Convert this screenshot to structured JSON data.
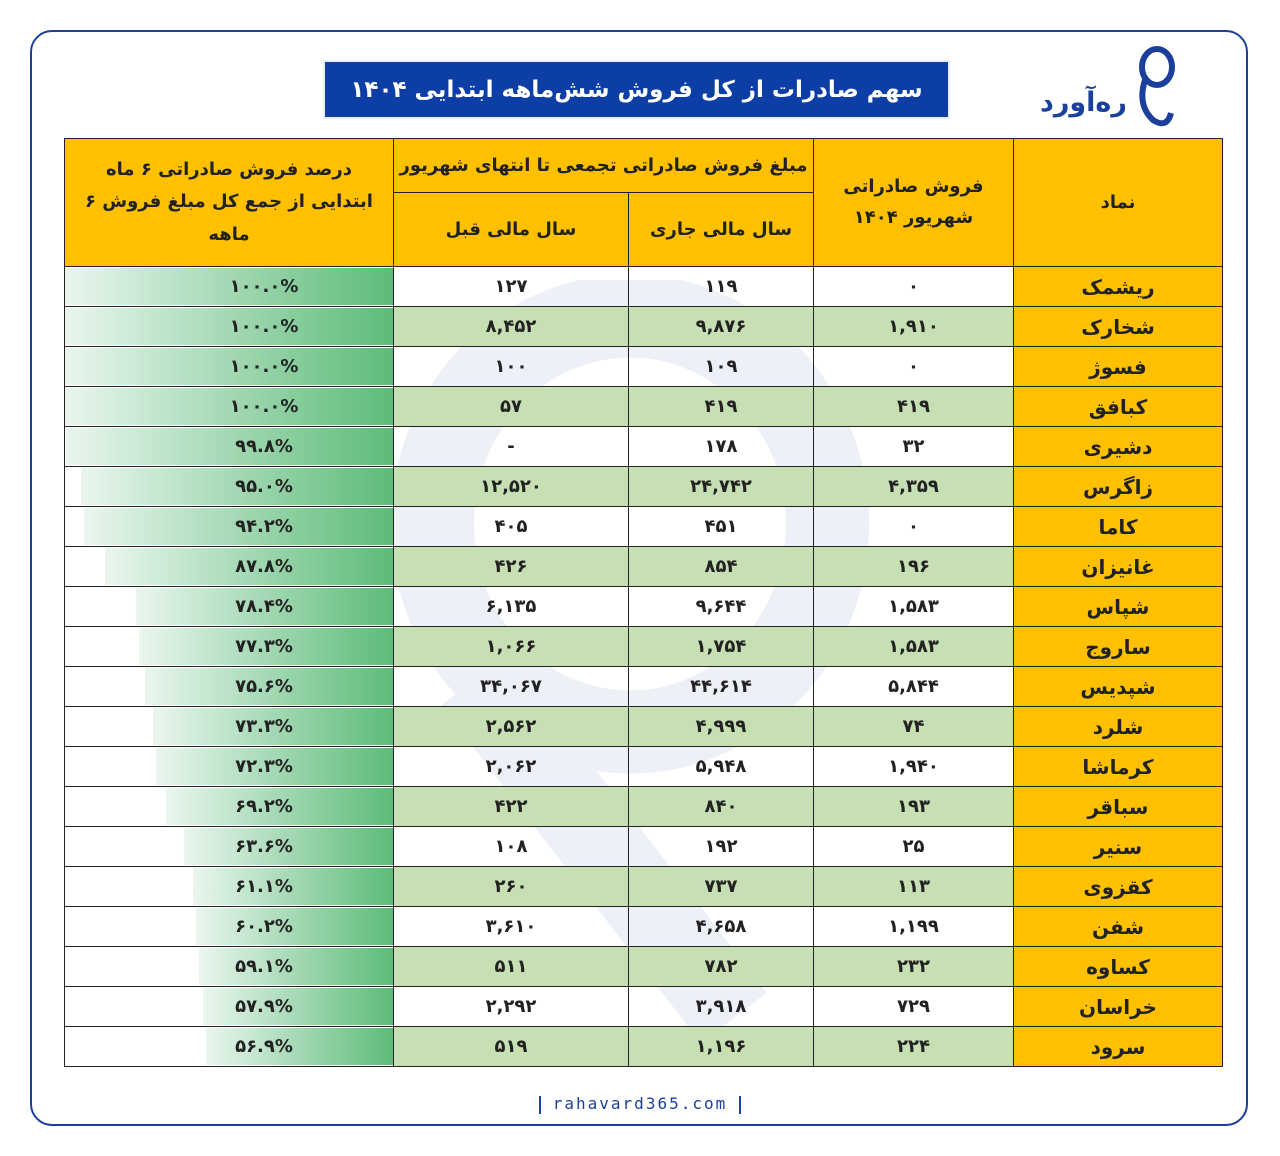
{
  "title": "سهم صادرات از کل فروش شش‌ماهه ابتدایی ۱۴۰۴",
  "brand": {
    "name": "ره‌آورد",
    "website": "rahavard365.com",
    "color": "#1b3f9a"
  },
  "colors": {
    "header": "#ffc000",
    "symbol_column": "#ffc000",
    "alt_row": "#c6e0b4",
    "bar": "#5dbb7a",
    "title_bg": "#0d3ea6"
  },
  "chart_data": {
    "type": "table",
    "headers": {
      "symbol": "نماد",
      "month_sales": "فروش صادراتی شهریور ۱۴۰۴",
      "cumulative_group": "مبلغ فروش صادراتی تجمعی تا انتهای شهریور",
      "current_year": "سال مالی جاری",
      "previous_year": "سال مالی قبل",
      "percent": "درصد فروش صادراتی ۶ ماه ابتدایی از جمع کل مبلغ فروش ۶ ماهه"
    },
    "rows": [
      {
        "symbol": "ریشمک",
        "month": "۰",
        "current": "۱۱۹",
        "previous": "۱۲۷",
        "percent_label": "۱۰۰.۰%",
        "percent": 100.0
      },
      {
        "symbol": "شخارک",
        "month": "۱,۹۱۰",
        "current": "۹,۸۷۶",
        "previous": "۸,۴۵۲",
        "percent_label": "۱۰۰.۰%",
        "percent": 100.0
      },
      {
        "symbol": "فسوژ",
        "month": "۰",
        "current": "۱۰۹",
        "previous": "۱۰۰",
        "percent_label": "۱۰۰.۰%",
        "percent": 100.0
      },
      {
        "symbol": "کبافق",
        "month": "۴۱۹",
        "current": "۴۱۹",
        "previous": "۵۷",
        "percent_label": "۱۰۰.۰%",
        "percent": 100.0
      },
      {
        "symbol": "دشیری",
        "month": "۳۲",
        "current": "۱۷۸",
        "previous": "-",
        "percent_label": "۹۹.۸%",
        "percent": 99.8
      },
      {
        "symbol": "زاگرس",
        "month": "۴,۳۵۹",
        "current": "۲۴,۷۴۲",
        "previous": "۱۲,۵۲۰",
        "percent_label": "۹۵.۰%",
        "percent": 95.0
      },
      {
        "symbol": "کاما",
        "month": "۰",
        "current": "۴۵۱",
        "previous": "۴۰۵",
        "percent_label": "۹۴.۲%",
        "percent": 94.2
      },
      {
        "symbol": "غانیزان",
        "month": "۱۹۶",
        "current": "۸۵۴",
        "previous": "۴۲۶",
        "percent_label": "۸۷.۸%",
        "percent": 87.8
      },
      {
        "symbol": "شپاس",
        "month": "۱,۵۸۳",
        "current": "۹,۶۴۴",
        "previous": "۶,۱۳۵",
        "percent_label": "۷۸.۴%",
        "percent": 78.4
      },
      {
        "symbol": "ساروج",
        "month": "۱,۵۸۳",
        "current": "۱,۷۵۴",
        "previous": "۱,۰۶۶",
        "percent_label": "۷۷.۳%",
        "percent": 77.3
      },
      {
        "symbol": "شپدیس",
        "month": "۵,۸۴۴",
        "current": "۴۴,۶۱۴",
        "previous": "۳۴,۰۶۷",
        "percent_label": "۷۵.۶%",
        "percent": 75.6
      },
      {
        "symbol": "شلرد",
        "month": "۷۴",
        "current": "۴,۹۹۹",
        "previous": "۲,۵۶۲",
        "percent_label": "۷۳.۳%",
        "percent": 73.3
      },
      {
        "symbol": "کرماشا",
        "month": "۱,۹۴۰",
        "current": "۵,۹۴۸",
        "previous": "۲,۰۶۲",
        "percent_label": "۷۲.۳%",
        "percent": 72.3
      },
      {
        "symbol": "سباقر",
        "month": "۱۹۳",
        "current": "۸۴۰",
        "previous": "۴۲۲",
        "percent_label": "۶۹.۲%",
        "percent": 69.2
      },
      {
        "symbol": "سنیر",
        "month": "۲۵",
        "current": "۱۹۲",
        "previous": "۱۰۸",
        "percent_label": "۶۳.۶%",
        "percent": 63.6
      },
      {
        "symbol": "کقزوی",
        "month": "۱۱۳",
        "current": "۷۳۷",
        "previous": "۲۶۰",
        "percent_label": "۶۱.۱%",
        "percent": 61.1
      },
      {
        "symbol": "شفن",
        "month": "۱,۱۹۹",
        "current": "۴,۶۵۸",
        "previous": "۳,۶۱۰",
        "percent_label": "۶۰.۲%",
        "percent": 60.2
      },
      {
        "symbol": "کساوه",
        "month": "۲۳۲",
        "current": "۷۸۲",
        "previous": "۵۱۱",
        "percent_label": "۵۹.۱%",
        "percent": 59.1
      },
      {
        "symbol": "خراسان",
        "month": "۷۲۹",
        "current": "۳,۹۱۸",
        "previous": "۲,۲۹۲",
        "percent_label": "۵۷.۹%",
        "percent": 57.9
      },
      {
        "symbol": "سرود",
        "month": "۲۲۴",
        "current": "۱,۱۹۶",
        "previous": "۵۱۹",
        "percent_label": "۵۶.۹%",
        "percent": 56.9
      }
    ]
  }
}
